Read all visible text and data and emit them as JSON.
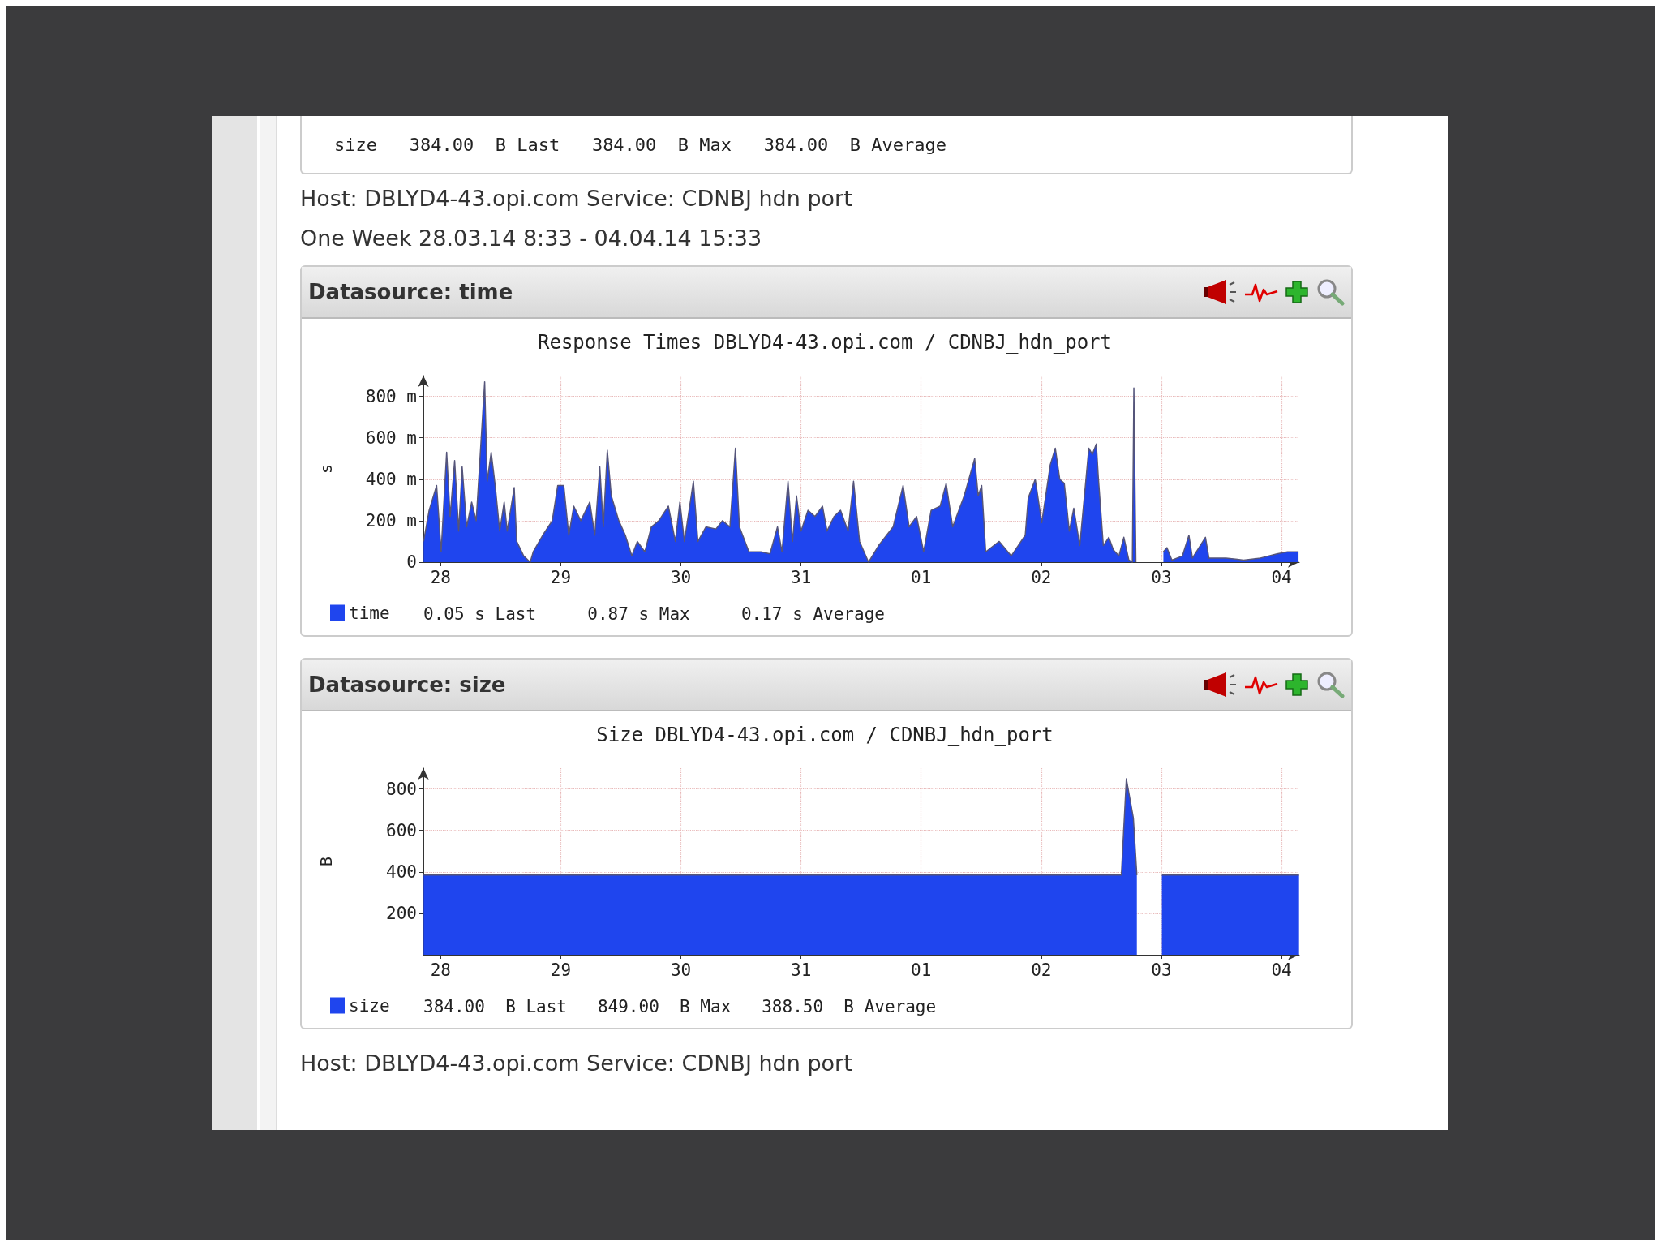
{
  "chart_data": [
    {
      "type": "area",
      "title": "Response Times DBLYD4-43.opi.com / CDNBJ_hdn_port",
      "ylabel": "s",
      "x": [
        "--03-28T08:36",
        "--03-28T09:42",
        "--03-28T11:12",
        "--03-28T12:06",
        "--03-28T13:12",
        "--03-28T13:54",
        "--03-28T14:48",
        "--03-28T15:36",
        "--03-28T16:18",
        "--03-28T17:12",
        "--03-28T18:12",
        "--03-28T19:06",
        "--03-28T20:48",
        "--03-28T21:18",
        "--03-28T22:06",
        "--03-28T22:54",
        "--03-28T23:48",
        "--03-29T00:42",
        "--03-29T01:18",
        "--03-29T02:42",
        "--03-29T03:12",
        "--03-29T04:36",
        "--03-29T05:54",
        "--03-29T06:30",
        "--03-29T08:24",
        "--03-29T10:18",
        "--03-29T11:24",
        "--03-29T12:36",
        "--03-29T13:36",
        "--03-29T14:36",
        "--03-29T16:00",
        "--03-29T17:48",
        "--03-29T18:48",
        "--03-29T19:48",
        "--03-29T20:30",
        "--03-29T21:18",
        "--03-29T22:06",
        "--03-29T23:36",
        "--03-30T00:54",
        "--03-30T02:12",
        "--03-30T03:18",
        "--03-30T04:48",
        "--03-30T06:06",
        "--03-30T07:36",
        "--03-30T09:30",
        "--03-30T10:54",
        "--03-30T11:48",
        "--03-30T12:42",
        "--03-30T14:30",
        "--03-30T15:24",
        "--03-30T17:00",
        "--03-30T19:00",
        "--03-30T20:18",
        "--03-30T21:48",
        "--03-30T22:54",
        "--03-30T23:42",
        "--03-31T01:36",
        "--03-31T04:00",
        "--03-31T05:48",
        "--03-31T07:18",
        "--03-31T08:12",
        "--03-31T09:24",
        "--03-31T10:18",
        "--03-31T11:06",
        "--03-31T12:00",
        "--03-31T13:24",
        "--03-31T14:48",
        "--03-31T16:18",
        "--03-31T17:12",
        "--03-31T18:36",
        "--03-31T19:54",
        "--03-31T21:24",
        "--03-31T22:30",
        "--03-31T23:42",
        "--04-01T01:30",
        "--04-01T03:30",
        "--04-01T06:24",
        "--04-01T08:24",
        "--04-01T09:36",
        "--04-01T11:06",
        "--04-01T12:30",
        "--04-01T14:00",
        "--04-01T15:48",
        "--04-01T17:00",
        "--04-01T18:18",
        "--04-01T20:36",
        "--04-01T22:42",
        "--04-01T23:24",
        "--04-02T00:06",
        "--04-02T00:54",
        "--04-02T03:36",
        "--04-02T06:00",
        "--04-02T08:48",
        "--04-02T09:24",
        "--04-02T10:48",
        "--04-02T12:06",
        "--04-02T13:48",
        "--04-02T14:48",
        "--04-02T15:42",
        "--04-02T16:36",
        "--04-02T17:36",
        "--04-02T18:30",
        "--04-02T19:42",
        "--04-02T20:42",
        "--04-02T21:30",
        "--04-02T22:12",
        "--04-02T23:00",
        "--04-02T23:24",
        "--04-03T00:24",
        "--04-03T01:30",
        "--04-03T02:24",
        "--04-03T03:30",
        "--04-03T04:30",
        "--04-03T05:30",
        "--04-03T06:12",
        "--04-03T06:30",
        "--04-03T06:54",
        "--04-03T09:00",
        "--04-03T12:24",
        "--04-03T13:06",
        "--04-03T14:06",
        "--04-03T16:12",
        "--04-03T17:30",
        "--04-03T18:12",
        "--04-03T20:48",
        "--04-03T21:30",
        "--04-04T00:54",
        "--04-04T04:24",
        "--04-04T07:48",
        "--04-04T11:06",
        "--04-04T13:12",
        "--04-04T15:24"
      ],
      "series": [
        {
          "name": "time",
          "color": "#1f45ee",
          "values": [
            100,
            250,
            370,
            50,
            530,
            220,
            490,
            150,
            460,
            170,
            290,
            200,
            870,
            390,
            530,
            370,
            150,
            290,
            150,
            360,
            100,
            30,
            0,
            50,
            130,
            200,
            370,
            370,
            130,
            270,
            200,
            290,
            130,
            460,
            170,
            540,
            320,
            200,
            130,
            30,
            100,
            50,
            170,
            200,
            270,
            100,
            290,
            100,
            390,
            100,
            170,
            160,
            200,
            170,
            550,
            170,
            50,
            50,
            40,
            170,
            50,
            390,
            100,
            320,
            150,
            250,
            220,
            270,
            150,
            220,
            250,
            150,
            390,
            100,
            0,
            80,
            170,
            370,
            170,
            220,
            50,
            250,
            270,
            380,
            170,
            320,
            500,
            320,
            370,
            50,
            100,
            30,
            130,
            310,
            400,
            190,
            470,
            550,
            400,
            380,
            150,
            260,
            80,
            340,
            550,
            520,
            570,
            410,
            80,
            120,
            60,
            30,
            120,
            10,
            0,
            840,
            0,
            null,
            50,
            70,
            10,
            30,
            130,
            20,
            120,
            20,
            20,
            10,
            20,
            40,
            50,
            50
          ]
        }
      ],
      "xlim": [
        "--03-28T08:33",
        "--04-04T15:33"
      ],
      "xticks": [
        {
          "value": "--03-28T12:00",
          "label": "28"
        },
        {
          "value": "--03-29T12:00",
          "label": "29"
        },
        {
          "value": "--03-30T12:00",
          "label": "30"
        },
        {
          "value": "--03-31T12:00",
          "label": "31"
        },
        {
          "value": "--04-01T12:00",
          "label": "01"
        },
        {
          "value": "--04-02T12:00",
          "label": "02"
        },
        {
          "value": "--04-03T12:00",
          "label": "03"
        },
        {
          "value": "--04-04T12:00",
          "label": "04"
        }
      ],
      "ylim": [
        0,
        900
      ],
      "yticks": [
        0,
        {
          "value": 200,
          "label": "200 m"
        },
        {
          "value": 400,
          "label": "400 m"
        },
        {
          "value": 600,
          "label": "600 m"
        },
        {
          "value": 800,
          "label": "800 m"
        }
      ],
      "grid": true,
      "legend": "bottom",
      "annotations": [
        "Datasource: time",
        "0.05 s Last     0.87 s Max     0.17 s Average",
        "size   384.00  B Last   384.00  B Max   384.00  B Average",
        "Host: DBLYD4-43.opi.com Service: CDNBJ hdn port",
        "One Week 28.03.14 8:33 - 04.04.14 15:33"
      ]
    },
    {
      "type": "area",
      "title": "Size DBLYD4-43.opi.com / CDNBJ_hdn_port",
      "ylabel": "B",
      "x": [
        "--03-28T08:36",
        "--04-03T04:00",
        "--04-03T05:00",
        "--04-03T06:24",
        "--04-03T07:06",
        "--04-03T07:12",
        "--04-03T12:06",
        "--04-04T15:30"
      ],
      "series": [
        {
          "name": "size",
          "color": "#1f45ee",
          "values": [
            384,
            384,
            849,
            660,
            384,
            null,
            384,
            384
          ]
        }
      ],
      "xlim": [
        "--03-28T08:33",
        "--04-04T15:33"
      ],
      "xticks": [
        {
          "value": "--03-28T12:00",
          "label": "28"
        },
        {
          "value": "--03-29T12:00",
          "label": "29"
        },
        {
          "value": "--03-30T12:00",
          "label": "30"
        },
        {
          "value": "--03-31T12:00",
          "label": "31"
        },
        {
          "value": "--04-01T12:00",
          "label": "01"
        },
        {
          "value": "--04-02T12:00",
          "label": "02"
        },
        {
          "value": "--04-03T12:00",
          "label": "03"
        },
        {
          "value": "--04-04T12:00",
          "label": "04"
        }
      ],
      "ylim": [
        0,
        900
      ],
      "yticks": [
        200,
        400,
        600,
        800
      ],
      "grid": true,
      "legend": "bottom",
      "annotations": [
        "Datasource: size",
        "384.00  B Last   849.00  B Max   388.50  B Average",
        "Host: DBLYD4-43.opi.com Service: CDNBJ hdn port"
      ]
    }
  ]
}
